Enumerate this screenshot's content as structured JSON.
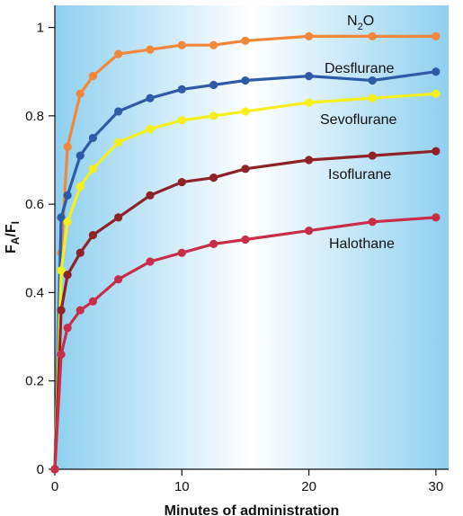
{
  "chart_data": {
    "type": "line",
    "title": "",
    "xlabel": "Minutes of administration",
    "ylabel_main": "F",
    "ylabel_sub1": "A",
    "ylabel_sep": "/F",
    "ylabel_sub2": "I",
    "xlim": [
      0,
      31
    ],
    "ylim": [
      0,
      1.05
    ],
    "x_ticks": [
      0,
      10,
      20,
      30
    ],
    "x_tick_labels": [
      "0",
      "10",
      "20",
      "30"
    ],
    "y_ticks": [
      0,
      0.2,
      0.4,
      0.6,
      0.8,
      1.0
    ],
    "y_tick_labels": [
      "0",
      "0.2",
      "0.4",
      "0.6",
      "0.8",
      "1"
    ],
    "grid": false,
    "legend": "inline labels",
    "x": [
      0,
      0.5,
      1,
      2,
      3,
      5,
      7.5,
      10,
      12.5,
      15,
      20,
      25,
      30
    ],
    "series": [
      {
        "name": "N₂O",
        "label_base": "N",
        "label_sub": "2",
        "label_tail": "O",
        "color": "#f2873a",
        "values": [
          0,
          0.49,
          0.73,
          0.85,
          0.89,
          0.94,
          0.95,
          0.96,
          0.96,
          0.97,
          0.98,
          0.98,
          0.98
        ]
      },
      {
        "name": "Desflurane",
        "color": "#2f5aa8",
        "values": [
          0,
          0.57,
          0.62,
          0.71,
          0.75,
          0.81,
          0.84,
          0.86,
          0.87,
          0.88,
          0.89,
          0.88,
          0.9
        ]
      },
      {
        "name": "Sevoflurane",
        "color": "#f6ef1a",
        "values": [
          0,
          0.45,
          0.56,
          0.64,
          0.68,
          0.74,
          0.77,
          0.79,
          0.8,
          0.81,
          0.83,
          0.84,
          0.85
        ]
      },
      {
        "name": "Isoflurane",
        "color": "#8e2227",
        "values": [
          0,
          0.36,
          0.44,
          0.49,
          0.53,
          0.57,
          0.62,
          0.65,
          0.66,
          0.68,
          0.7,
          0.71,
          0.72
        ]
      },
      {
        "name": "Halothane",
        "color": "#c92e49",
        "values": [
          0,
          0.26,
          0.32,
          0.36,
          0.38,
          0.43,
          0.47,
          0.49,
          0.51,
          0.52,
          0.54,
          0.56,
          0.57
        ]
      }
    ]
  }
}
